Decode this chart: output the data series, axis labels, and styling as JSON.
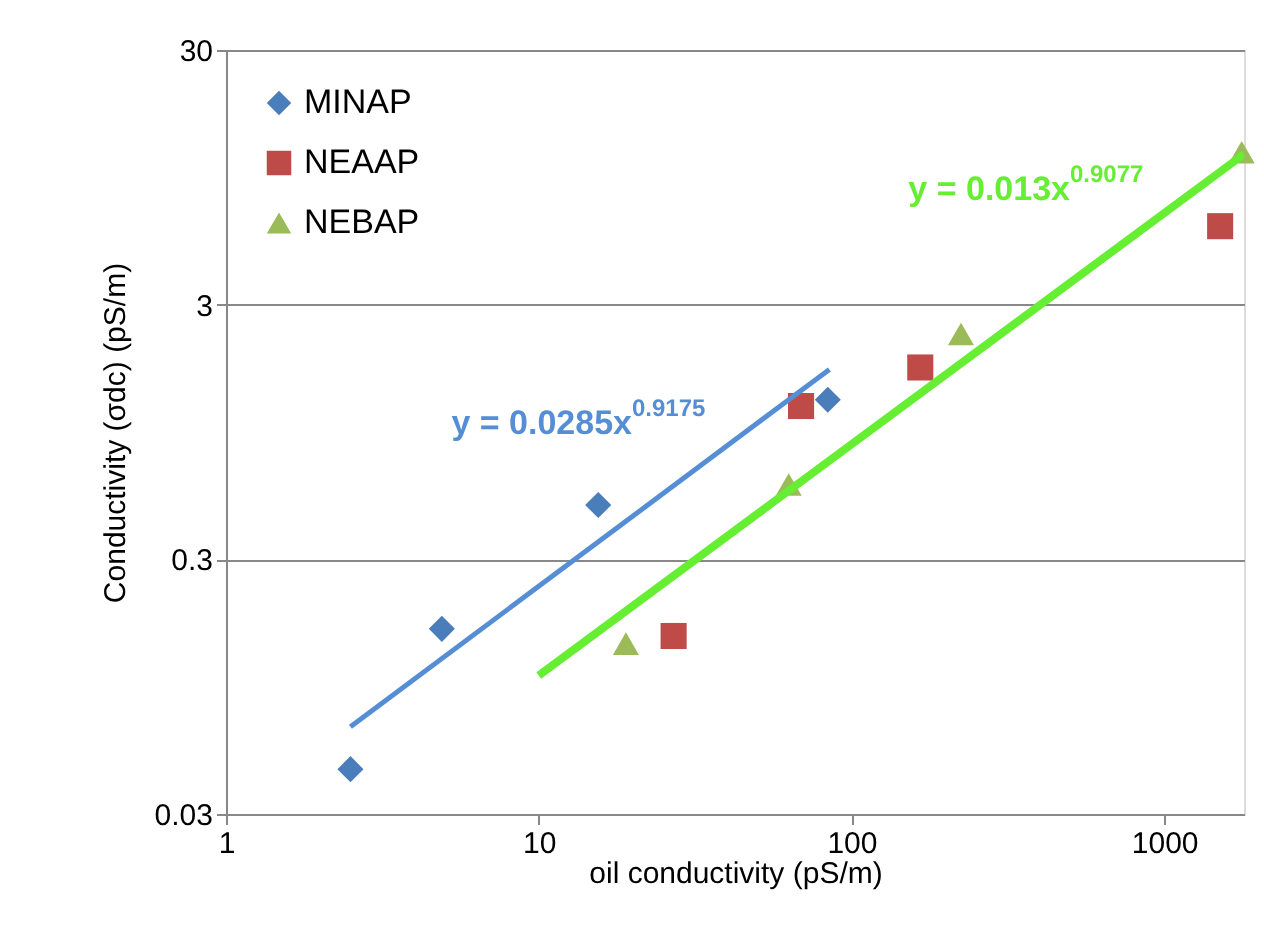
{
  "chart_data": {
    "type": "scatter",
    "xlabel": "oil conductivity  (pS/m)",
    "ylabel": "Conductivity  (σdc) (pS/m)",
    "log": "xy",
    "xlim": [
      1,
      1800
    ],
    "ylim": [
      0.03,
      30
    ],
    "xticks": [
      1,
      10,
      100,
      1000
    ],
    "yticks": [
      0.03,
      0.3,
      3,
      30
    ],
    "grid": "y",
    "legend": "top left",
    "series": [
      {
        "name": "MINAP",
        "color": "#4a7ebb",
        "marker": "diamond",
        "x": [
          2.5,
          4.9,
          15.5,
          84
        ],
        "values": [
          0.045,
          0.16,
          0.49,
          1.27
        ]
      },
      {
        "name": "NEAAP",
        "color": "#be4b48",
        "marker": "square",
        "x": [
          27,
          69,
          166,
          1510
        ],
        "values": [
          0.15,
          1.2,
          1.7,
          6.1
        ]
      },
      {
        "name": "NEBAP",
        "color": "#9bbb59",
        "marker": "triangle",
        "x": [
          19,
          63,
          224,
          1770
        ],
        "values": [
          0.14,
          0.59,
          2.3,
          11.9
        ]
      },
      {
        "type": "line",
        "color": "#558ed5",
        "x": [
          2.5,
          85
        ],
        "values": [
          0.066,
          1.67
        ]
      },
      {
        "type": "line",
        "color": "#66ee33",
        "x": [
          10,
          1800
        ],
        "values": [
          0.105,
          11.7
        ]
      }
    ],
    "annotations": [
      "y = 0.0285x$^{0.9175}$",
      "y = 0.013x$^{0.9077}$"
    ]
  }
}
